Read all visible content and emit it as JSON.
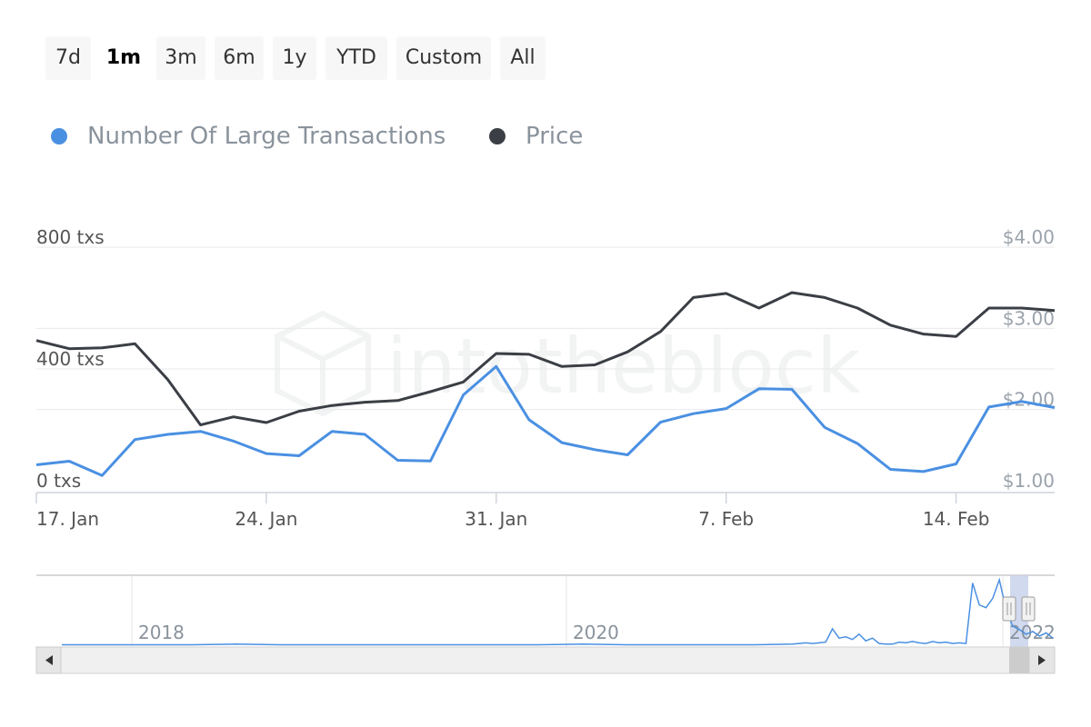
{
  "range_selector": {
    "buttons": [
      "7d",
      "1m",
      "3m",
      "6m",
      "1y",
      "YTD",
      "Custom",
      "All"
    ],
    "selected": "1m"
  },
  "watermark": "intotheblock",
  "colors": {
    "transactions": "#4a90e2",
    "price": "#3b3f45",
    "grid": "#e8eaed",
    "axis_text": "#8a939c"
  },
  "chart_data": {
    "type": "line",
    "x": [
      "2022-01-17",
      "2022-01-18",
      "2022-01-19",
      "2022-01-20",
      "2022-01-21",
      "2022-01-22",
      "2022-01-23",
      "2022-01-24",
      "2022-01-25",
      "2022-01-26",
      "2022-01-27",
      "2022-01-28",
      "2022-01-29",
      "2022-01-30",
      "2022-01-31",
      "2022-02-01",
      "2022-02-02",
      "2022-02-03",
      "2022-02-04",
      "2022-02-05",
      "2022-02-06",
      "2022-02-07",
      "2022-02-08",
      "2022-02-09",
      "2022-02-10",
      "2022-02-11",
      "2022-02-12",
      "2022-02-13",
      "2022-02-14",
      "2022-02-15",
      "2022-02-16",
      "2022-02-17"
    ],
    "series": [
      {
        "name": "Number Of Large Transactions",
        "axis": "left",
        "color": "#4a90e2",
        "values": [
          85,
          97,
          50,
          168,
          185,
          195,
          163,
          122,
          115,
          195,
          185,
          100,
          98,
          315,
          408,
          233,
          158,
          135,
          118,
          225,
          253,
          270,
          335,
          333,
          208,
          155,
          70,
          63,
          88,
          275,
          293,
          273
        ]
      },
      {
        "name": "Price",
        "axis": "right",
        "color": "#3b3f45",
        "values": [
          2.85,
          2.75,
          2.76,
          2.81,
          2.37,
          1.81,
          1.91,
          1.84,
          1.98,
          2.05,
          2.09,
          2.11,
          2.22,
          2.34,
          2.69,
          2.68,
          2.53,
          2.55,
          2.71,
          2.96,
          3.38,
          3.43,
          3.25,
          3.44,
          3.38,
          3.25,
          3.04,
          2.93,
          2.9,
          3.25,
          3.25,
          3.22
        ]
      }
    ],
    "y_left": {
      "ticks": [
        "0 txs",
        "400 txs",
        "800 txs"
      ],
      "range": [
        0,
        800
      ]
    },
    "y_right": {
      "ticks": [
        "$1.00",
        "$2.00",
        "$3.00",
        "$4.00"
      ],
      "range": [
        1.0,
        4.0
      ]
    },
    "x_ticks": [
      "17. Jan",
      "24. Jan",
      "31. Jan",
      "7. Feb",
      "14. Feb"
    ],
    "x_range": [
      "2022-01-17",
      "2022-02-17"
    ],
    "grid": true,
    "legend_placement": "top-left"
  },
  "navigator": {
    "year_labels": [
      "2018",
      "2020",
      "2022"
    ],
    "series_values": [
      0.02,
      0.02,
      0.02,
      0.02,
      0.03,
      0.02,
      0.02,
      0.02,
      0.02,
      0.02,
      0.02,
      0.02,
      0.03,
      0.02,
      0.02,
      0.02,
      0.02,
      0.03,
      0.04,
      0.05,
      0.04,
      0.05,
      0.06,
      0.26,
      0.12,
      0.14,
      0.1,
      0.18,
      0.08,
      0.12,
      0.04,
      0.03,
      0.03,
      0.06,
      0.05,
      0.07,
      0.05,
      0.04,
      0.07,
      0.05,
      0.06,
      0.04,
      0.05,
      0.04,
      0.95,
      0.62,
      0.58,
      0.72,
      1.0,
      0.55,
      0.3,
      0.25,
      0.18,
      0.22,
      0.15,
      0.2,
      0.12
    ]
  }
}
